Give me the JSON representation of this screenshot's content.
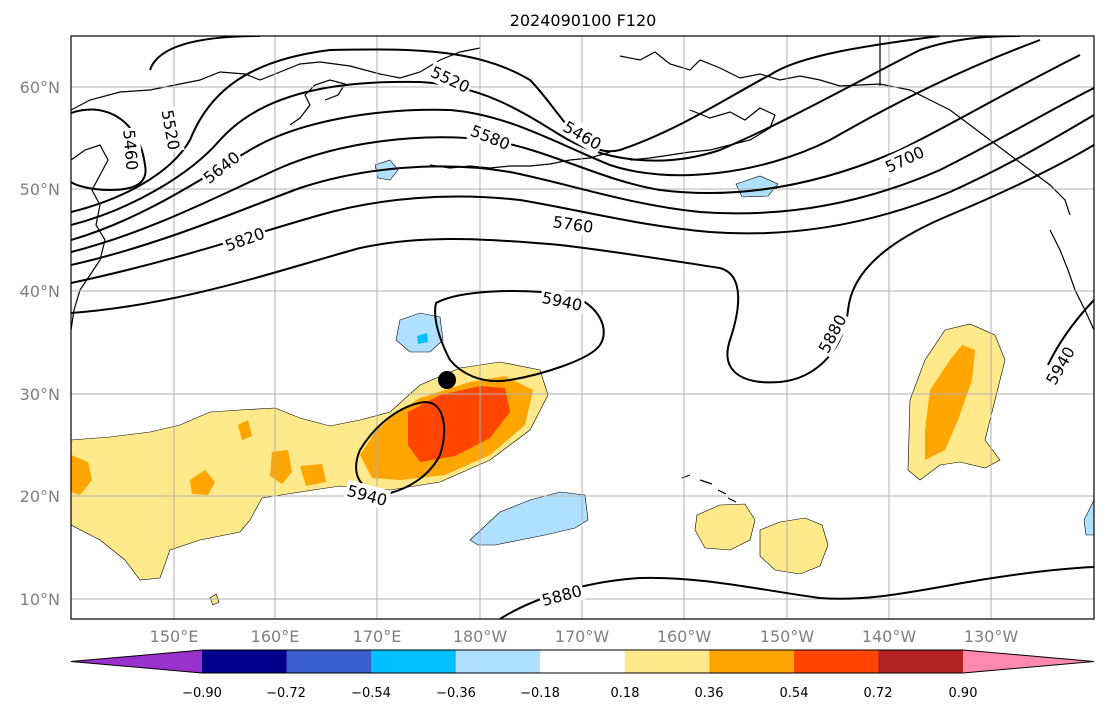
{
  "title": "2024090100 F120",
  "lat_labels": [
    "60°N",
    "50°N",
    "40°N",
    "30°N",
    "20°N",
    "10°N"
  ],
  "lon_labels": [
    "150°E",
    "160°E",
    "170°E",
    "180°W",
    "170°W",
    "160°W",
    "150°W",
    "140°W",
    "130°W"
  ],
  "contour_labels": [
    "5520",
    "5460",
    "5520",
    "5580",
    "5460",
    "5640",
    "5700",
    "5760",
    "5820",
    "5940",
    "5880",
    "5940",
    "5940",
    "5880"
  ],
  "colorbar": {
    "colors": [
      "#9932cc",
      "#00008b",
      "#3a5fcd",
      "#00bfff",
      "#b0e0ff",
      "#ffffff",
      "#ffe98a",
      "#ffa500",
      "#ff4500",
      "#b22222",
      "#ff88b0"
    ],
    "tick_labels": [
      "−0.90",
      "−0.72",
      "−0.54",
      "−0.36",
      "−0.18",
      "0.18",
      "0.36",
      "0.54",
      "0.72",
      "0.90"
    ]
  },
  "storm_marker": "filled-circle"
}
